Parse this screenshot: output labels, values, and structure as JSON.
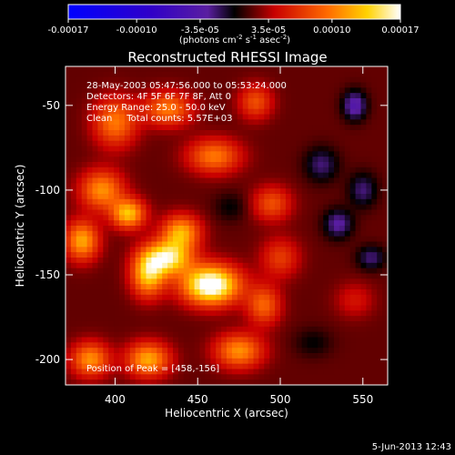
{
  "chart_data": {
    "type": "heatmap",
    "title": "Reconstructed RHESSI Image",
    "xlabel": "Heliocentric X (arcsec)",
    "ylabel": "Heliocentric Y (arcsec)",
    "xlim": [
      370,
      565
    ],
    "ylim": [
      -215,
      -27
    ],
    "xticks": [
      400,
      450,
      500,
      550
    ],
    "yticks": [
      -50,
      -100,
      -150,
      -200
    ],
    "colorbar": {
      "min": -0.00017,
      "max": 0.00017,
      "ticks": [
        {
          "value": -0.00017,
          "label": "-0.00017"
        },
        {
          "value": -0.0001,
          "label": "-0.00010"
        },
        {
          "value": -3.5e-05,
          "label": "-3.5e-05"
        },
        {
          "value": 3.5e-05,
          "label": "3.5e-05"
        },
        {
          "value": 0.0001,
          "label": "0.00010"
        },
        {
          "value": 0.00017,
          "label": "0.00017"
        }
      ],
      "unit_label": "(photons cm",
      "unit_sup1": "-2",
      "unit_mid": " s",
      "unit_sup2": "-1",
      "unit_end": " asec",
      "unit_sup3": "-2",
      "unit_close": ")"
    },
    "annotations": [
      "28-May-2003 05:47:56.000 to 05:53:24.000",
      "Detectors: 4F 5F 6F 7F 8F, Att 0",
      "Energy Range: 25.0 - 50.0 keV",
      "Clean     Total counts: 5.57E+03"
    ],
    "peak_label": "Position of Peak = [458,-156]",
    "peak": {
      "x": 458,
      "y": -156
    },
    "sources": [
      {
        "x": 458,
        "y": -156,
        "sx": 12,
        "sy": 8,
        "a": 0.00017
      },
      {
        "x": 432,
        "y": -140,
        "sx": 10,
        "sy": 7,
        "a": 0.00013
      },
      {
        "x": 440,
        "y": -125,
        "sx": 8,
        "sy": 7,
        "a": 0.0001
      },
      {
        "x": 420,
        "y": -150,
        "sx": 7,
        "sy": 9,
        "a": 0.00011
      },
      {
        "x": 408,
        "y": -114,
        "sx": 7,
        "sy": 6,
        "a": 0.00011
      },
      {
        "x": 392,
        "y": -100,
        "sx": 9,
        "sy": 8,
        "a": 9e-05
      },
      {
        "x": 400,
        "y": -60,
        "sx": 9,
        "sy": 10,
        "a": 8e-05
      },
      {
        "x": 432,
        "y": -52,
        "sx": 10,
        "sy": 7,
        "a": 8e-05
      },
      {
        "x": 460,
        "y": -80,
        "sx": 11,
        "sy": 7,
        "a": 8e-05
      },
      {
        "x": 485,
        "y": -48,
        "sx": 7,
        "sy": 7,
        "a": 6e-05
      },
      {
        "x": 495,
        "y": -108,
        "sx": 8,
        "sy": 7,
        "a": 6e-05
      },
      {
        "x": 380,
        "y": -130,
        "sx": 7,
        "sy": 8,
        "a": 0.0001
      },
      {
        "x": 385,
        "y": -200,
        "sx": 8,
        "sy": 7,
        "a": 9e-05
      },
      {
        "x": 420,
        "y": -200,
        "sx": 9,
        "sy": 7,
        "a": 0.0001
      },
      {
        "x": 475,
        "y": -195,
        "sx": 10,
        "sy": 7,
        "a": 9e-05
      },
      {
        "x": 490,
        "y": -168,
        "sx": 7,
        "sy": 8,
        "a": 7e-05
      },
      {
        "x": 500,
        "y": -140,
        "sx": 8,
        "sy": 8,
        "a": 5e-05
      },
      {
        "x": 545,
        "y": -165,
        "sx": 8,
        "sy": 7,
        "a": 3e-05
      },
      {
        "x": 525,
        "y": -85,
        "sx": 7,
        "sy": 7,
        "a": -4e-05
      },
      {
        "x": 535,
        "y": -120,
        "sx": 6,
        "sy": 6,
        "a": -5e-05
      },
      {
        "x": 550,
        "y": -100,
        "sx": 6,
        "sy": 7,
        "a": -4e-05
      },
      {
        "x": 545,
        "y": -50,
        "sx": 5,
        "sy": 6,
        "a": -6e-05
      },
      {
        "x": 555,
        "y": -140,
        "sx": 6,
        "sy": 5,
        "a": -4e-05
      },
      {
        "x": 470,
        "y": -110,
        "sx": 7,
        "sy": 6,
        "a": -2e-05
      },
      {
        "x": 520,
        "y": -190,
        "sx": 8,
        "sy": 6,
        "a": -2e-05
      }
    ],
    "background": 2e-05
  },
  "footer": {
    "date": "5-Jun-2013 12:43"
  }
}
